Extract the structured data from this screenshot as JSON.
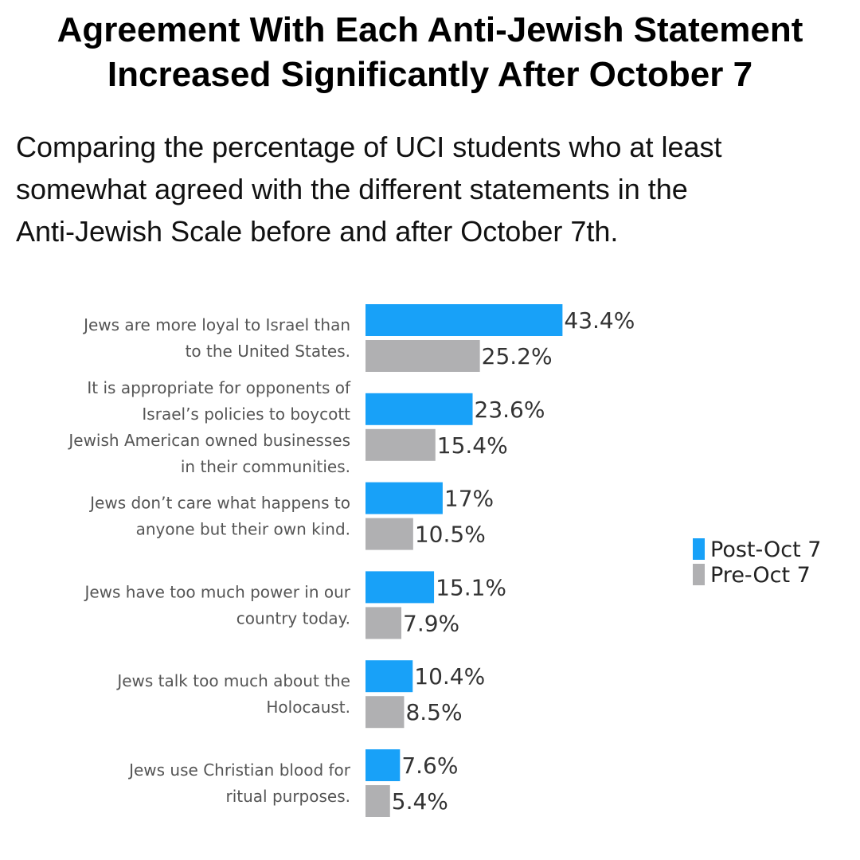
{
  "title_lines": [
    "Agreement With Each Anti-Jewish Statement",
    "Increased Significantly After October 7"
  ],
  "subtitle_lines": [
    "Comparing the percentage of UCI students who at least",
    "somewhat agreed with the different statements in the",
    "Anti-Jewish Scale before and after October 7th."
  ],
  "colors": {
    "post": "#18a1f8",
    "pre": "#b0b0b2"
  },
  "chart_data": {
    "type": "bar",
    "orientation": "horizontal",
    "title": "Agreement With Each Anti-Jewish Statement Increased Significantly After October 7",
    "subtitle": "Comparing the percentage of UCI students who at least somewhat agreed with the different statements in the Anti-Jewish Scale before and after October 7th.",
    "categories": [
      [
        "Jews are more loyal to Israel than",
        "to the United States."
      ],
      [
        "It is appropriate for opponents of",
        "Israel’s policies to boycott",
        "Jewish American owned businesses",
        "in their communities."
      ],
      [
        "Jews don’t care what happens to",
        "anyone but their own kind."
      ],
      [
        "Jews have too much power in our",
        "country today."
      ],
      [
        "Jews talk too much about the",
        "Holocaust."
      ],
      [
        "Jews use Christian blood for",
        "ritual purposes."
      ]
    ],
    "series": [
      {
        "name": "Post-Oct 7",
        "values": [
          43.4,
          23.6,
          17,
          15.1,
          10.4,
          7.6
        ],
        "labels": [
          "43.4%",
          "23.6%",
          "17%",
          "15.1%",
          "10.4%",
          "7.6%"
        ]
      },
      {
        "name": "Pre-Oct 7",
        "values": [
          25.2,
          15.4,
          10.5,
          7.9,
          8.5,
          5.4
        ],
        "labels": [
          "25.2%",
          "15.4%",
          "10.5%",
          "7.9%",
          "8.5%",
          "5.4%"
        ]
      }
    ],
    "unit": "%",
    "legend_position": "right"
  }
}
